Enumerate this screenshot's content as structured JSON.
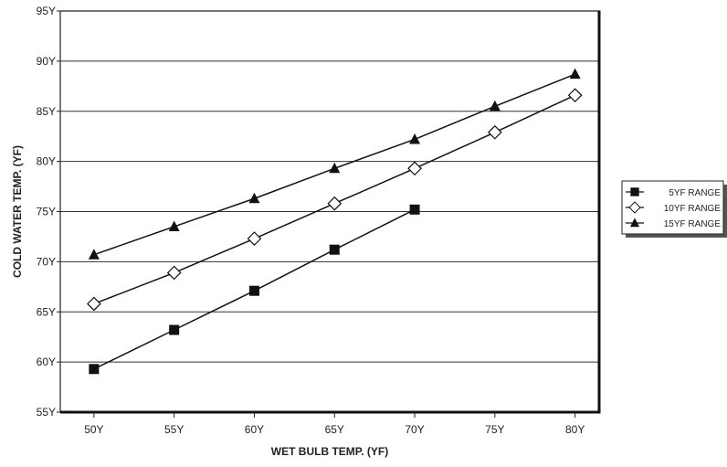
{
  "chart_data": {
    "type": "line",
    "title": "",
    "xlabel": "WET BULB TEMP. (ΥF)",
    "ylabel": "COLD WATER TEMP. (ΥF)",
    "x": [
      50,
      55,
      60,
      65,
      70,
      75,
      80
    ],
    "x_tick_labels": [
      "50Υ",
      "55Υ",
      "60Υ",
      "65Υ",
      "70Υ",
      "75Υ",
      "80Υ"
    ],
    "y_ticks": [
      55,
      60,
      65,
      70,
      75,
      80,
      85,
      90,
      95
    ],
    "y_tick_labels": [
      "55Υ",
      "60Υ",
      "65Υ",
      "70Υ",
      "75Υ",
      "80Υ",
      "85Υ",
      "90Υ",
      "95Υ"
    ],
    "xlim": [
      47.9,
      81.5
    ],
    "ylim": [
      55,
      95
    ],
    "grid": "horizontal",
    "legend_position": "right",
    "series": [
      {
        "name": "5ΥF RANGE",
        "marker": "square-filled",
        "x": [
          50,
          55,
          60,
          65,
          70
        ],
        "values": [
          59.3,
          63.2,
          67.1,
          71.2,
          75.2
        ]
      },
      {
        "name": "10ΥF RANGE",
        "marker": "diamond-open",
        "x": [
          50,
          55,
          60,
          65,
          70,
          75,
          80
        ],
        "values": [
          65.8,
          68.9,
          72.3,
          75.8,
          79.3,
          82.9,
          86.6
        ]
      },
      {
        "name": "15ΥF RANGE",
        "marker": "triangle-filled",
        "x": [
          50,
          55,
          60,
          65,
          70,
          75,
          80
        ],
        "values": [
          70.7,
          73.5,
          76.3,
          79.3,
          82.2,
          85.5,
          88.7
        ]
      }
    ]
  }
}
